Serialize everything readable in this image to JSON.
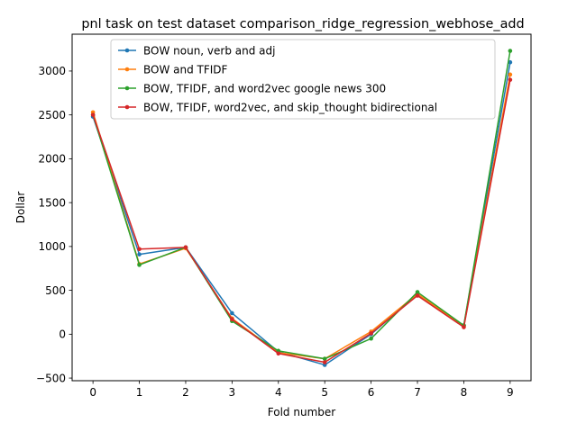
{
  "chart_data": {
    "type": "line",
    "title": "pnl task on test dataset comparison_ridge_regression_webhose_add",
    "xlabel": "Fold number",
    "ylabel": "Dollar",
    "x": [
      0,
      1,
      2,
      3,
      4,
      5,
      6,
      7,
      8,
      9
    ],
    "xlim": [
      -0.45,
      9.45
    ],
    "ylim": [
      -530,
      3420
    ],
    "xticks": [
      "0",
      "1",
      "2",
      "3",
      "4",
      "5",
      "6",
      "7",
      "8",
      "9"
    ],
    "yticks": [
      -500,
      0,
      500,
      1000,
      1500,
      2000,
      2500,
      3000
    ],
    "ytick_labels": [
      "−500",
      "0",
      "500",
      "1000",
      "1500",
      "2000",
      "2500",
      "3000"
    ],
    "grid": false,
    "legend_placement": "top-center",
    "series": [
      {
        "name": "BOW noun, verb and adj",
        "color": "#1f77b4",
        "values": [
          2480,
          910,
          990,
          240,
          -200,
          -350,
          0,
          450,
          100,
          3100
        ]
      },
      {
        "name": "BOW and TFIDF",
        "color": "#ff7f0e",
        "values": [
          2530,
          800,
          980,
          180,
          -210,
          -280,
          30,
          460,
          90,
          2960
        ]
      },
      {
        "name": "BOW, TFIDF, and word2vec google news 300",
        "color": "#2ca02c",
        "values": [
          2500,
          790,
          990,
          150,
          -190,
          -280,
          -50,
          480,
          100,
          3230
        ]
      },
      {
        "name": "BOW, TFIDF, word2vec, and skip_thought bidirectional",
        "color": "#d62728",
        "values": [
          2500,
          970,
          990,
          170,
          -220,
          -320,
          10,
          440,
          80,
          2900
        ]
      }
    ]
  }
}
